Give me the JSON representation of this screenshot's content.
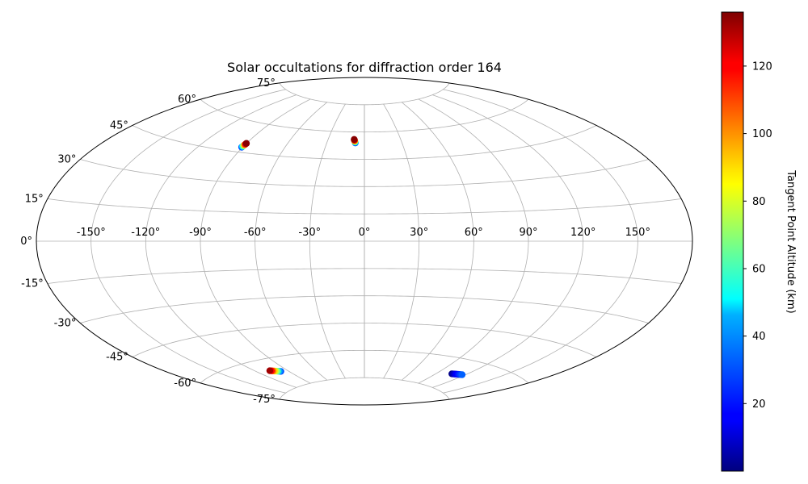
{
  "chart_data": {
    "type": "scatter",
    "projection": "aitoff",
    "title": "Solar occultations for diffraction order 164",
    "lon_ticks": [
      -150,
      -120,
      -90,
      -60,
      -30,
      0,
      30,
      60,
      90,
      120,
      150
    ],
    "lon_tick_labels": [
      "-150°",
      "-120°",
      "-90°",
      "-60°",
      "-30°",
      "0°",
      "30°",
      "60°",
      "90°",
      "120°",
      "150°"
    ],
    "lat_ticks": [
      -75,
      -60,
      -45,
      -30,
      -15,
      0,
      15,
      30,
      45,
      60,
      75
    ],
    "lat_tick_labels": [
      "-75°",
      "-60°",
      "-45°",
      "-30°",
      "-15°",
      "0°",
      "15°",
      "30°",
      "45°",
      "60°",
      "75°"
    ],
    "grid": true,
    "colorbar": {
      "label": "Tangent Point Altitude (km)",
      "range": [
        0,
        136
      ],
      "ticks": [
        20,
        40,
        60,
        80,
        100,
        120
      ],
      "tick_labels": [
        "20",
        "40",
        "60",
        "80",
        "100",
        "120"
      ],
      "colormap": "jet"
    },
    "series": [
      {
        "points": [
          {
            "lon": -90.7,
            "lat": 47.5,
            "alt": 30
          },
          {
            "lon": -90.6,
            "lat": 47.9,
            "alt": 50
          },
          {
            "lon": -90.5,
            "lat": 48.3,
            "alt": 70
          },
          {
            "lon": -90.4,
            "lat": 48.7,
            "alt": 90
          },
          {
            "lon": -90.3,
            "lat": 49.0,
            "alt": 110
          },
          {
            "lon": -90.2,
            "lat": 49.3,
            "alt": 125
          },
          {
            "lon": -90.1,
            "lat": 49.6,
            "alt": 135
          }
        ]
      },
      {
        "points": [
          {
            "lon": -7.3,
            "lat": 54.0,
            "alt": 30
          },
          {
            "lon": -7.5,
            "lat": 54.4,
            "alt": 50
          },
          {
            "lon": -7.7,
            "lat": 54.7,
            "alt": 70
          },
          {
            "lon": -7.9,
            "lat": 55.0,
            "alt": 90
          },
          {
            "lon": -8.1,
            "lat": 55.3,
            "alt": 110
          },
          {
            "lon": -8.3,
            "lat": 55.6,
            "alt": 125
          },
          {
            "lon": -8.5,
            "lat": 55.9,
            "alt": 135
          }
        ]
      },
      {
        "points": [
          {
            "lon": -98.0,
            "lat": -67.0,
            "alt": 30
          },
          {
            "lon": -99.3,
            "lat": -66.8,
            "alt": 45
          },
          {
            "lon": -100.6,
            "lat": -66.6,
            "alt": 60
          },
          {
            "lon": -101.9,
            "lat": -66.4,
            "alt": 75
          },
          {
            "lon": -103.2,
            "lat": -66.2,
            "alt": 90
          },
          {
            "lon": -104.5,
            "lat": -66.0,
            "alt": 105
          },
          {
            "lon": -105.8,
            "lat": -65.8,
            "alt": 120
          },
          {
            "lon": -107.0,
            "lat": -65.6,
            "alt": 132
          }
        ]
      },
      {
        "points": [
          {
            "lon": 106.0,
            "lat": -67.6,
            "alt": 1
          },
          {
            "lon": 107.4,
            "lat": -67.5,
            "alt": 5
          },
          {
            "lon": 108.8,
            "lat": -67.4,
            "alt": 9
          },
          {
            "lon": 110.2,
            "lat": -67.3,
            "alt": 13
          },
          {
            "lon": 111.6,
            "lat": -67.2,
            "alt": 17
          },
          {
            "lon": 113.0,
            "lat": -67.1,
            "alt": 21
          },
          {
            "lon": 114.4,
            "lat": -67.0,
            "alt": 25
          },
          {
            "lon": 115.8,
            "lat": -66.9,
            "alt": 29
          },
          {
            "lon": 117.0,
            "lat": -66.8,
            "alt": 33
          }
        ]
      }
    ]
  }
}
